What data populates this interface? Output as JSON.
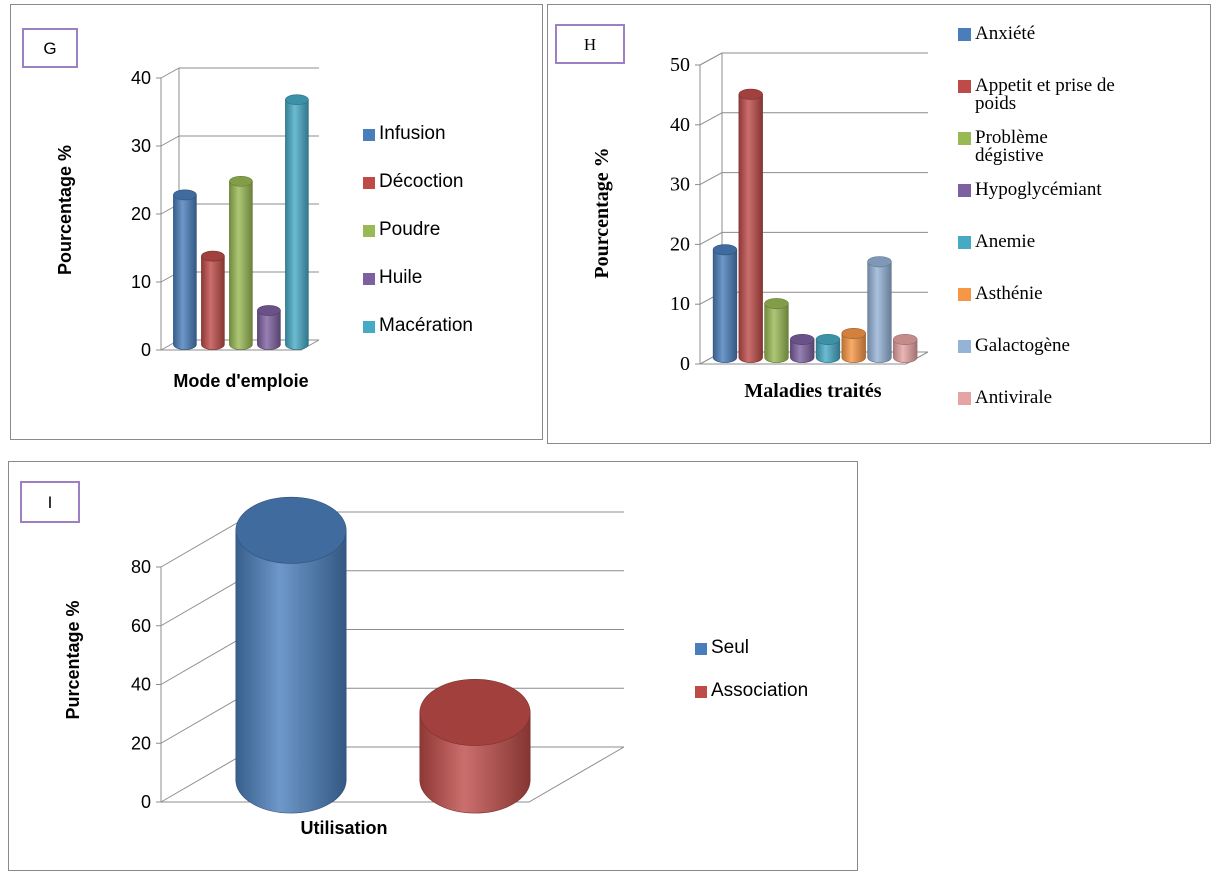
{
  "colors": {
    "blue": "#4a7ebb",
    "red": "#be4b48",
    "green": "#98b954",
    "purple": "#7d60a0",
    "aqua": "#46aac5",
    "orange": "#f79646",
    "lightblue": "#95b3d7",
    "pink": "#e6a3a3",
    "frame": "#9d7fc4"
  },
  "chart_data": [
    {
      "id": "G",
      "type": "bar",
      "panel_label": "G",
      "categories": [
        "Infusion",
        "Décoction",
        "Poudre",
        "Huile",
        "Macération"
      ],
      "values": [
        22,
        13,
        24,
        5,
        36
      ],
      "series_colors": [
        "blue",
        "red",
        "green",
        "purple",
        "aqua"
      ],
      "xlabel": "Mode d'emploie",
      "ylabel": "Pourcentage %",
      "ylim": [
        0,
        40
      ],
      "yticks": [
        0,
        10,
        20,
        30,
        40
      ],
      "grid": true,
      "legend_position": "right"
    },
    {
      "id": "H",
      "type": "bar",
      "panel_label": "H",
      "categories": [
        "Anxiété",
        "Appetit et prise de poids",
        "Problème dégistive",
        "Hypoglycémiant",
        "Anemie",
        "Asthénie",
        "Galactogène",
        "Antivirale"
      ],
      "values": [
        18,
        44,
        9,
        3,
        3,
        4,
        16,
        3
      ],
      "series_colors": [
        "blue",
        "red",
        "green",
        "purple",
        "aqua",
        "orange",
        "lightblue",
        "pink"
      ],
      "xlabel": "Maladies traités",
      "ylabel": "Pourcentage %",
      "ylim": [
        0,
        50
      ],
      "yticks": [
        0,
        10,
        20,
        30,
        40,
        50
      ],
      "grid": true,
      "legend_position": "right"
    },
    {
      "id": "I",
      "type": "bar",
      "panel_label": "I",
      "categories": [
        "Seul",
        "Association"
      ],
      "values": [
        85,
        23
      ],
      "series_colors": [
        "blue",
        "red"
      ],
      "xlabel": "Utilisation",
      "ylabel": "Purcentage %",
      "ylim": [
        0,
        80
      ],
      "yticks": [
        0,
        20,
        40,
        60,
        80
      ],
      "grid": true,
      "legend_position": "right"
    }
  ]
}
